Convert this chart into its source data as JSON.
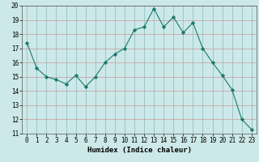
{
  "x": [
    0,
    1,
    2,
    3,
    4,
    5,
    6,
    7,
    8,
    9,
    10,
    11,
    12,
    13,
    14,
    15,
    16,
    17,
    18,
    19,
    20,
    21,
    22,
    23
  ],
  "y": [
    17.4,
    15.6,
    15.0,
    14.8,
    14.5,
    15.1,
    14.3,
    15.0,
    16.0,
    16.6,
    17.0,
    18.3,
    18.5,
    19.8,
    18.5,
    19.2,
    18.1,
    18.8,
    17.0,
    16.0,
    15.1,
    14.1,
    12.0,
    11.3
  ],
  "xlabel": "Humidex (Indice chaleur)",
  "xlim": [
    -0.5,
    23.5
  ],
  "ylim": [
    11,
    20
  ],
  "yticks": [
    11,
    12,
    13,
    14,
    15,
    16,
    17,
    18,
    19,
    20
  ],
  "xticks": [
    0,
    1,
    2,
    3,
    4,
    5,
    6,
    7,
    8,
    9,
    10,
    11,
    12,
    13,
    14,
    15,
    16,
    17,
    18,
    19,
    20,
    21,
    22,
    23
  ],
  "line_color": "#1a7a6a",
  "marker_color": "#1a7a6a",
  "bg_color": "#cce8e8",
  "hgrid_color": "#cc9999",
  "vgrid_color": "#88bbbb",
  "tick_fontsize": 5.5,
  "label_fontsize": 6.5
}
